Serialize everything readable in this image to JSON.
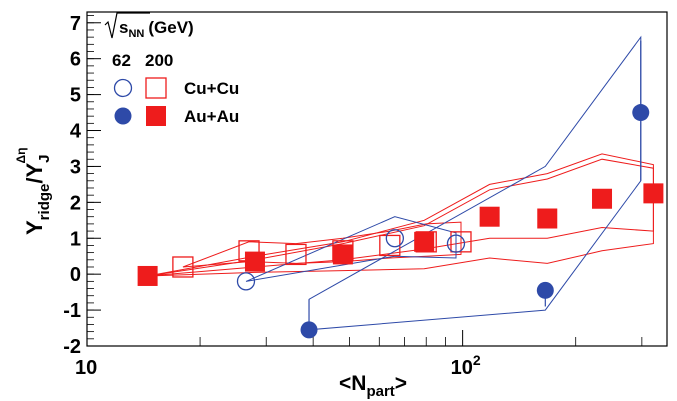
{
  "chart_data": {
    "type": "scatter",
    "x_scale": "log",
    "xlim": [
      10,
      350
    ],
    "ylim": [
      -2,
      7.3
    ],
    "xlabel": "<N",
    "xlabel_sub": "part",
    "xlabel_end": ">",
    "ylabel_main": "Y",
    "ylabel_sub1": "ridge",
    "ylabel_mid": "/Y",
    "ylabel_sub2": "J",
    "ylabel_sup": "Δη",
    "x_ticks": [
      {
        "value": 10,
        "base": "10",
        "exp": ""
      },
      {
        "value": 100,
        "base": "10",
        "exp": "2"
      }
    ],
    "y_ticks": [
      -2,
      -1,
      0,
      1,
      2,
      3,
      4,
      5,
      6,
      7
    ],
    "legend": {
      "header_sqrt": "√",
      "header_s": "s",
      "header_sub": "NN",
      "header_unit": "(GeV)",
      "energy_62": "62",
      "energy_200": "200",
      "row_cucu": "Cu+Cu",
      "row_auau": "Au+Au",
      "position": "top-left"
    },
    "colors": {
      "red": "#ee1c1c",
      "blue": "#2e4aa8"
    },
    "series": [
      {
        "name": "Cu+Cu 200",
        "marker": "open-square",
        "color": "#ee1c1c",
        "x": [
          18,
          27,
          36,
          48,
          64,
          80,
          99
        ],
        "y": [
          0.2,
          0.65,
          0.55,
          0.65,
          0.8,
          0.9,
          0.9
        ]
      },
      {
        "name": "Au+Au 200",
        "marker": "filled-square",
        "color": "#ee1c1c",
        "x": [
          14.5,
          28,
          48,
          79,
          118,
          168,
          235,
          322
        ],
        "y": [
          -0.05,
          0.35,
          0.55,
          0.9,
          1.6,
          1.55,
          2.1,
          2.25
        ]
      },
      {
        "name": "Cu+Cu 62",
        "marker": "open-circle",
        "color": "#2e4aa8",
        "x": [
          26.5,
          66,
          96
        ],
        "y": [
          -0.2,
          1.0,
          0.85
        ]
      },
      {
        "name": "Au+Au 62",
        "marker": "filled-circle",
        "color": "#2e4aa8",
        "x": [
          39,
          166,
          298
        ],
        "y": [
          -1.55,
          -0.45,
          4.5
        ]
      }
    ],
    "error_bars": [
      {
        "color": "#ee1c1c",
        "x": 14.5,
        "lo": -0.05,
        "hi": -0.05
      },
      {
        "color": "#2e4aa8",
        "x": 39,
        "lo": -1.55,
        "hi": -0.7
      },
      {
        "color": "#2e4aa8",
        "x": 166,
        "lo": -0.9,
        "hi": -0.45
      },
      {
        "color": "#2e4aa8",
        "x": 298,
        "lo": 2.6,
        "hi": 6.5
      }
    ],
    "bands": [
      {
        "color": "#ee1c1c",
        "upper": [
          [
            14.5,
            -0.05
          ],
          [
            28,
            0.5
          ],
          [
            48,
            0.9
          ],
          [
            79,
            1.5
          ],
          [
            118,
            2.5
          ],
          [
            168,
            2.8
          ],
          [
            235,
            3.35
          ],
          [
            322,
            3.05
          ]
        ],
        "lower": [
          [
            14.5,
            -0.05
          ],
          [
            28,
            0.05
          ],
          [
            48,
            0.1
          ],
          [
            79,
            0.15
          ],
          [
            118,
            0.45
          ],
          [
            168,
            0.3
          ],
          [
            235,
            0.65
          ],
          [
            322,
            0.85
          ]
        ]
      },
      {
        "color": "#ee1c1c",
        "upper": [
          [
            14.5,
            -0.05
          ],
          [
            28,
            0.4
          ],
          [
            48,
            0.85
          ],
          [
            79,
            1.35
          ],
          [
            118,
            2.35
          ],
          [
            168,
            2.65
          ],
          [
            235,
            3.2
          ],
          [
            322,
            2.95
          ]
        ],
        "lower": [
          [
            14.5,
            -0.05
          ],
          [
            28,
            0.2
          ],
          [
            48,
            0.4
          ],
          [
            79,
            0.7
          ],
          [
            118,
            1.0
          ],
          [
            168,
            1.0
          ],
          [
            235,
            1.3
          ],
          [
            322,
            1.2
          ]
        ]
      },
      {
        "color": "#ee1c1c",
        "upper": [
          [
            18,
            0.2
          ],
          [
            27,
            0.9
          ],
          [
            36,
            0.85
          ],
          [
            48,
            1.0
          ],
          [
            64,
            1.2
          ],
          [
            80,
            1.4
          ],
          [
            99,
            1.45
          ]
        ],
        "lower": [
          [
            18,
            0.2
          ],
          [
            27,
            0.35
          ],
          [
            36,
            0.3
          ],
          [
            48,
            0.35
          ],
          [
            64,
            0.45
          ],
          [
            80,
            0.5
          ],
          [
            99,
            0.55
          ]
        ]
      },
      {
        "color": "#2e4aa8",
        "upper": [
          [
            26.5,
            -0.2
          ],
          [
            66,
            1.6
          ],
          [
            96,
            1.15
          ]
        ],
        "lower": [
          [
            26.5,
            -0.2
          ],
          [
            66,
            0.5
          ],
          [
            96,
            0.45
          ]
        ]
      },
      {
        "color": "#2e4aa8",
        "upper": [
          [
            39,
            -0.7
          ],
          [
            166,
            3.0
          ],
          [
            298,
            6.6
          ]
        ],
        "lower": [
          [
            39,
            -1.55
          ],
          [
            166,
            -1.0
          ],
          [
            298,
            2.6
          ]
        ]
      }
    ]
  }
}
